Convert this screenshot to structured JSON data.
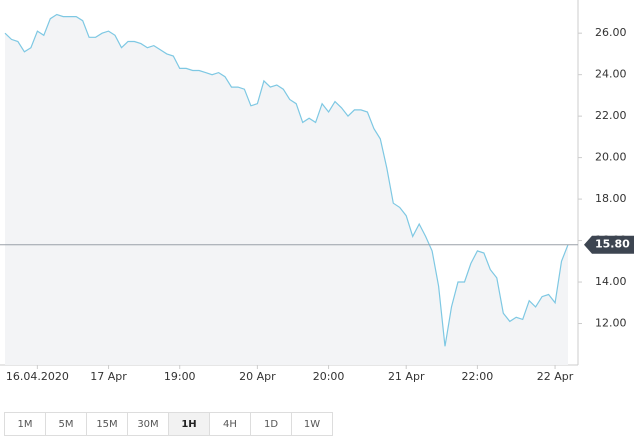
{
  "chart_data": {
    "type": "line",
    "categories": [
      null,
      null,
      null,
      null,
      null,
      "16.04.2020",
      null,
      null,
      null,
      null,
      null,
      null,
      null,
      null,
      null,
      null,
      "17 Apr",
      null,
      null,
      null,
      null,
      null,
      null,
      null,
      null,
      null,
      null,
      "19:00",
      null,
      null,
      null,
      null,
      null,
      null,
      null,
      null,
      null,
      null,
      null,
      "20 Apr",
      null,
      null,
      null,
      null,
      null,
      null,
      null,
      null,
      null,
      null,
      "20:00",
      null,
      null,
      null,
      null,
      null,
      null,
      null,
      null,
      null,
      null,
      null,
      "21 Apr",
      null,
      null,
      null,
      null,
      null,
      null,
      null,
      null,
      null,
      null,
      "22:00",
      null,
      null,
      null,
      null,
      null,
      null,
      null,
      null,
      null,
      null,
      null,
      "22 Apr",
      null,
      null
    ],
    "series": [
      {
        "color": "#7ec8e3",
        "values": [
          26.0,
          25.7,
          25.6,
          25.1,
          25.3,
          26.1,
          25.9,
          26.7,
          26.9,
          26.8,
          26.8,
          26.8,
          26.6,
          25.8,
          25.8,
          26.0,
          26.1,
          25.9,
          25.3,
          25.6,
          25.6,
          25.5,
          25.3,
          25.4,
          25.2,
          25.0,
          24.9,
          24.3,
          24.3,
          24.2,
          24.2,
          24.1,
          24.0,
          24.1,
          23.9,
          23.4,
          23.4,
          23.3,
          22.5,
          22.6,
          23.7,
          23.4,
          23.5,
          23.3,
          22.8,
          22.6,
          21.7,
          21.9,
          21.7,
          22.6,
          22.2,
          22.7,
          22.4,
          22.0,
          22.3,
          22.3,
          22.2,
          21.4,
          20.9,
          19.5,
          17.8,
          17.6,
          17.2,
          16.2,
          16.8,
          16.2,
          15.5,
          13.8,
          10.9,
          12.8,
          14.0,
          14.0,
          14.9,
          15.5,
          15.4,
          14.6,
          14.2,
          12.5,
          12.1,
          12.3,
          12.2,
          13.1,
          12.8,
          13.3,
          13.4,
          13.0,
          15.0,
          15.8
        ]
      }
    ],
    "ylim": [
      10,
      27.6
    ],
    "yticks": [
      {
        "value": 12,
        "label": "12.00"
      },
      {
        "value": 14,
        "label": "14.00"
      },
      {
        "value": 16,
        "label": "16.00"
      },
      {
        "value": 18,
        "label": "18.00"
      },
      {
        "value": 20,
        "label": "20.00"
      },
      {
        "value": 22,
        "label": "22.00"
      },
      {
        "value": 24,
        "label": "24.00"
      },
      {
        "value": 26,
        "label": "26.00"
      }
    ],
    "last_price": {
      "value": 15.8,
      "label": "15.80"
    }
  },
  "timeframes": {
    "buttons": [
      "1M",
      "5M",
      "15M",
      "30M",
      "1H",
      "4H",
      "1D",
      "1W"
    ],
    "selected": 4
  }
}
